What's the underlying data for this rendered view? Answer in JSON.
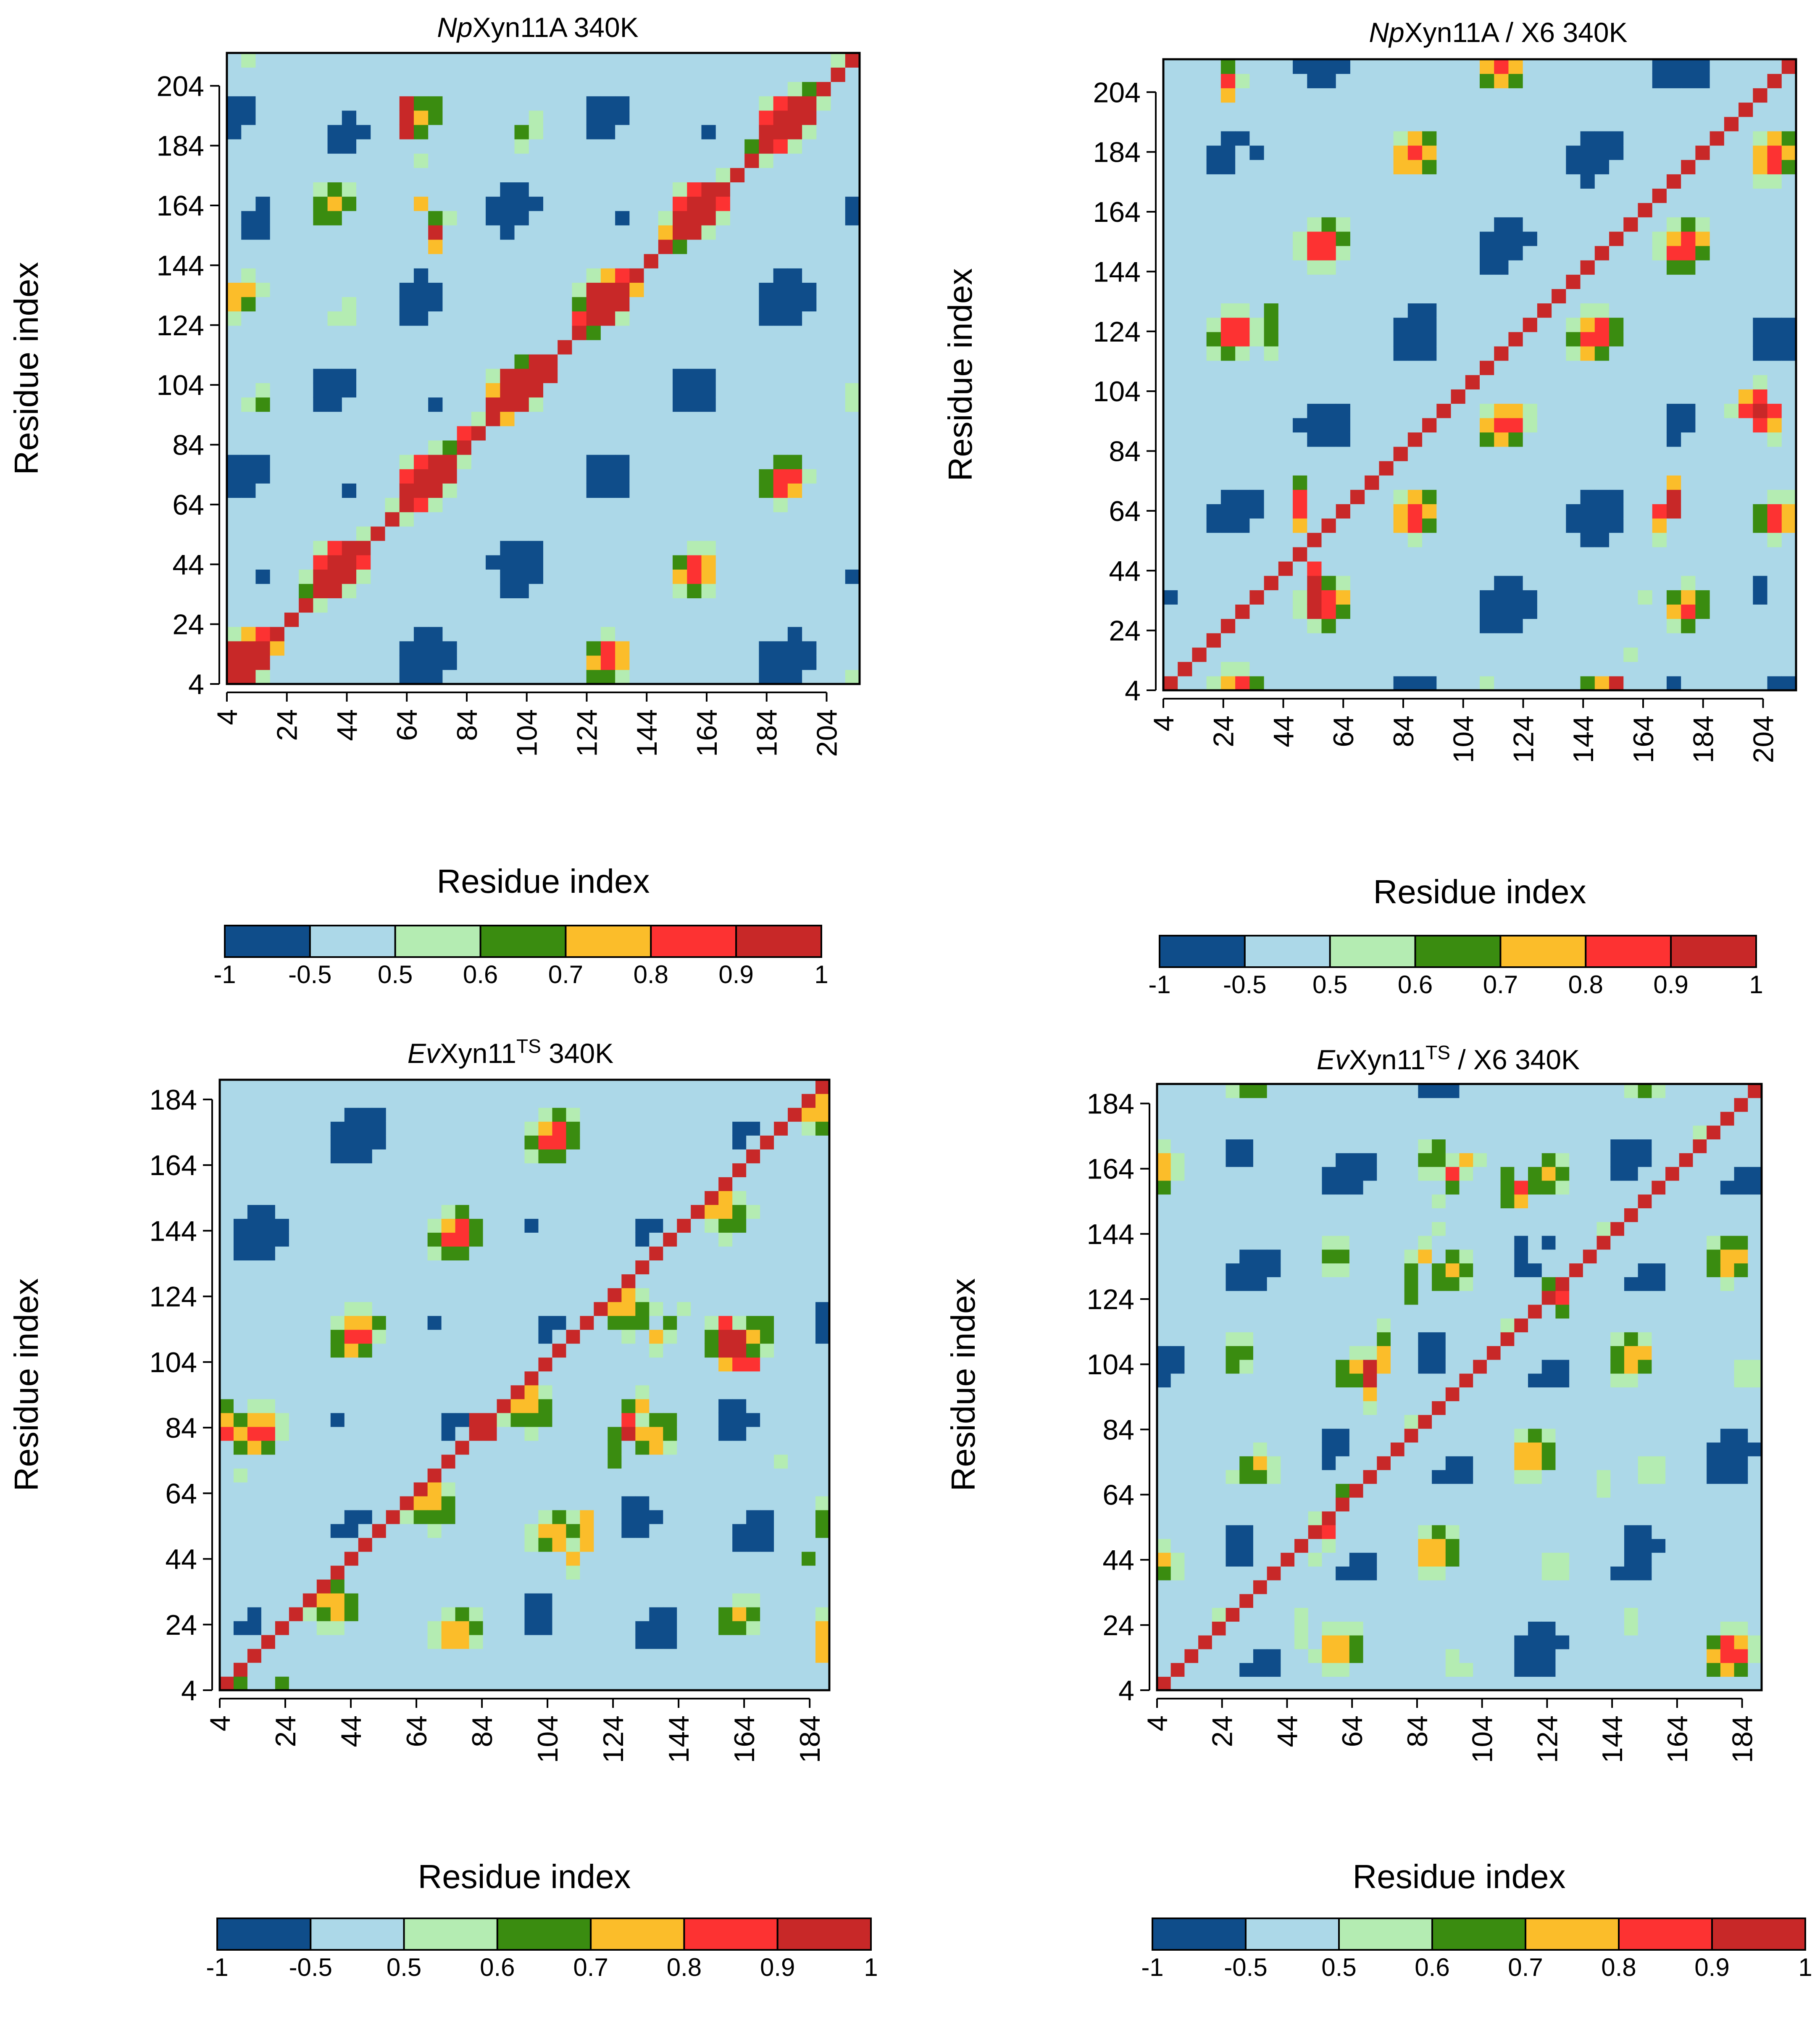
{
  "chart_data": [
    {
      "id": "p1",
      "type": "heatmap",
      "title_italic": "Np",
      "title_rest": "Xyn11A 340K",
      "title_sup": "",
      "title_after": "",
      "xlabel": "Residue index",
      "ylabel": "Residue index",
      "range": [
        4,
        215
      ],
      "ticks": [
        4,
        24,
        44,
        64,
        84,
        104,
        124,
        144,
        164,
        184,
        204
      ],
      "diag_slope": -1,
      "blocks": [
        [
          103,
          113
        ]
      ],
      "colorbar": {
        "labels": [
          "-1",
          "-0.5",
          "0.5",
          "0.6",
          "0.7",
          "0.8",
          "0.9",
          "1"
        ],
        "colors": [
          "#0f4d8a",
          "#acd8e8",
          "#b4ecb2",
          "#3a8c10",
          "#fbbd2a",
          "#fd3232",
          "#c82828"
        ]
      }
    },
    {
      "id": "p2",
      "type": "heatmap",
      "title_italic": "Np",
      "title_rest": "Xyn11A / X6 340K",
      "title_sup": "",
      "title_after": "",
      "xlabel": "Residue index",
      "ylabel": "Residue index",
      "range": [
        4,
        215
      ],
      "ticks": [
        4,
        24,
        44,
        64,
        84,
        104,
        124,
        144,
        164,
        184,
        204
      ],
      "diag_slope": -1,
      "blocks": [],
      "colorbar": {
        "labels": [
          "-1",
          "-0.5",
          "0.5",
          "0.6",
          "0.7",
          "0.8",
          "0.9",
          "1"
        ],
        "colors": [
          "#0f4d8a",
          "#acd8e8",
          "#b4ecb2",
          "#3a8c10",
          "#fbbd2a",
          "#fd3232",
          "#c82828"
        ]
      }
    },
    {
      "id": "p3",
      "type": "heatmap",
      "title_italic": "Ev",
      "title_rest": "Xyn11",
      "title_sup": "TS",
      "title_after": " 340K",
      "xlabel": "Residue index",
      "ylabel": "Residue index",
      "range": [
        4,
        190
      ],
      "ticks": [
        4,
        24,
        44,
        64,
        84,
        104,
        124,
        144,
        164,
        184
      ],
      "diag_slope": -1,
      "blocks": [
        [
          80,
          90
        ]
      ],
      "colorbar": {
        "labels": [
          "-1",
          "-0.5",
          "0.5",
          "0.6",
          "0.7",
          "0.8",
          "0.9",
          "1"
        ],
        "colors": [
          "#0f4d8a",
          "#acd8e8",
          "#b4ecb2",
          "#3a8c10",
          "#fbbd2a",
          "#fd3232",
          "#c82828"
        ]
      }
    },
    {
      "id": "p4",
      "type": "heatmap",
      "title_italic": "Ev",
      "title_rest": "Xyn11",
      "title_sup": "TS",
      "title_after": " / X6 340K",
      "xlabel": "Residue index",
      "ylabel": "Residue index",
      "range": [
        4,
        190
      ],
      "ticks": [
        4,
        24,
        44,
        64,
        84,
        104,
        124,
        144,
        164,
        184
      ],
      "diag_slope": -1,
      "blocks": [],
      "colorbar": {
        "labels": [
          "-1",
          "-0.5",
          "0.5",
          "0.6",
          "0.7",
          "0.8",
          "0.9",
          "1"
        ],
        "colors": [
          "#0f4d8a",
          "#acd8e8",
          "#b4ecb2",
          "#3a8c10",
          "#fbbd2a",
          "#fd3232",
          "#c82828"
        ]
      }
    }
  ]
}
